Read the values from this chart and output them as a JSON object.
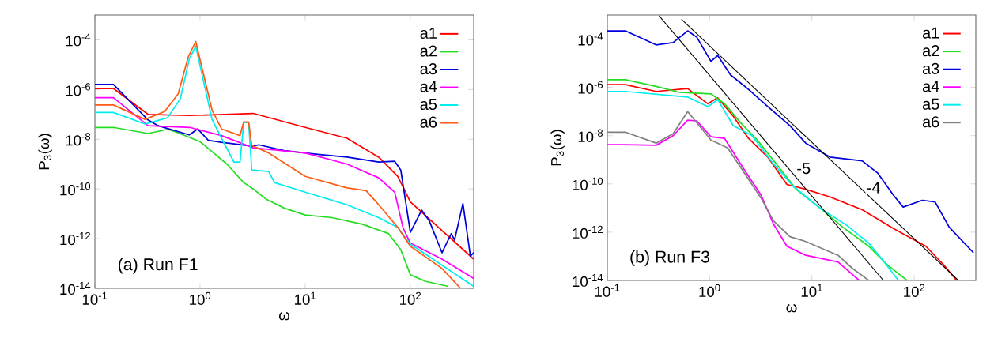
{
  "chart_data": [
    {
      "type": "line",
      "xlabel": "ω",
      "ylabel": "P$_{3}$(ω)",
      "log": "xy",
      "xlim": [
        0.1,
        400
      ],
      "ylim": [
        1e-14,
        0.001
      ],
      "xticks": [
        {
          "value": 0.1,
          "label": "10$^{-1}$"
        },
        {
          "value": 1,
          "label": "10$^{0}$"
        },
        {
          "value": 10,
          "label": "10$^{1}$"
        },
        {
          "value": 100,
          "label": "10$^{2}$"
        }
      ],
      "yticks": [
        {
          "value": 1e-14,
          "label": "10$^{-14}$"
        },
        {
          "value": 1e-12,
          "label": "10$^{-12}$"
        },
        {
          "value": 1e-10,
          "label": "10$^{-10}$"
        },
        {
          "value": 1e-08,
          "label": "10$^{-8}$"
        },
        {
          "value": 1e-06,
          "label": "10$^{-6}$"
        },
        {
          "value": 0.0001,
          "label": "10$^{-4}$"
        }
      ],
      "legend": "top right",
      "marker": "none",
      "line_style": "solid",
      "annotations": [
        "(a) Run F1"
      ],
      "series": [
        {
          "name": "a1",
          "color": "#ff0000",
          "x": [
            0.1,
            0.15,
            0.32,
            0.8,
            3.2,
            10,
            25,
            50,
            76,
            100,
            200,
            400
          ],
          "values": [
            1.1e-06,
            1.1e-06,
            1e-07,
            9e-08,
            1.1e-07,
            3e-08,
            1.1e-08,
            1.9e-09,
            3.2e-10,
            3e-11,
            2.1e-12,
            1.5e-13
          ]
        },
        {
          "name": "a2",
          "color": "#22dd22",
          "x": [
            0.1,
            0.15,
            0.32,
            0.49,
            0.6,
            1.0,
            1.5,
            1.8,
            2.6,
            3.2,
            4.2,
            6.3,
            10,
            18,
            35,
            62,
            81,
            100,
            140,
            230
          ],
          "values": [
            3e-08,
            3e-08,
            1.7e-08,
            2.5e-08,
            1.9e-08,
            8e-09,
            1.9e-09,
            1e-09,
            1.8e-10,
            1e-10,
            4e-11,
            1.7e-11,
            9e-12,
            7e-12,
            3.8e-12,
            1.6e-12,
            3.6e-13,
            3.5e-14,
            1.9e-14,
            1.2e-14
          ]
        },
        {
          "name": "a3",
          "color": "#0000dd",
          "x": [
            0.1,
            0.15,
            0.32,
            0.4,
            0.79,
            0.95,
            1.2,
            1.6,
            3.2,
            3.6,
            6.3,
            12.6,
            25,
            50,
            71,
            81,
            100,
            128,
            152,
            200,
            245,
            263,
            316,
            372,
            400
          ],
          "values": [
            1.6e-06,
            1.6e-06,
            6e-08,
            3.5e-08,
            1.5e-08,
            2.6e-08,
            9e-09,
            7.5e-09,
            5.2e-09,
            6e-09,
            3.5e-09,
            2.5e-09,
            1.9e-09,
            1.2e-09,
            1.3e-09,
            5.8e-10,
            1.8e-12,
            1.4e-11,
            5e-12,
            2.7e-13,
            1.6e-12,
            8.7e-13,
            2.6e-11,
            2e-13,
            2.7e-13
          ]
        },
        {
          "name": "a4",
          "color": "#ff00ff",
          "x": [
            0.1,
            0.15,
            0.32,
            0.8,
            1.6,
            3.2,
            10,
            25,
            50,
            71,
            85,
            100,
            200,
            400
          ],
          "values": [
            4.7e-07,
            4.7e-07,
            3.5e-08,
            3e-08,
            1.4e-08,
            4.5e-09,
            2.8e-09,
            1e-09,
            2.8e-10,
            7.4e-11,
            2.8e-12,
            6.6e-13,
            1.5e-13,
            2.5e-14
          ]
        },
        {
          "name": "a5",
          "color": "#00eeee",
          "x": [
            0.1,
            0.15,
            0.3,
            0.49,
            0.65,
            0.79,
            0.91,
            1.3,
            1.6,
            2.1,
            2.4,
            2.6,
            2.9,
            3.1,
            4.5,
            5.1,
            10,
            25,
            50,
            76,
            100,
            200,
            400
          ],
          "values": [
            1.2e-07,
            1.2e-07,
            4.1e-08,
            7.3e-08,
            4.3e-07,
            1.7e-05,
            5.5e-05,
            6.3e-08,
            1.1e-08,
            1.2e-09,
            1.2e-09,
            4.7e-08,
            4.7e-08,
            5.8e-10,
            5e-10,
            1.8e-10,
            7.4e-11,
            2.3e-11,
            7e-12,
            2.8e-12,
            6e-13,
            8.5e-14,
            1.2e-14
          ]
        },
        {
          "name": "a6",
          "color": "#ff5a14",
          "x": [
            0.1,
            0.15,
            0.3,
            0.46,
            0.62,
            0.77,
            0.91,
            1.3,
            1.6,
            2.4,
            2.6,
            2.9,
            3.1,
            4.5,
            10,
            25,
            38,
            50,
            76,
            100,
            200,
            300
          ],
          "values": [
            2.4e-07,
            2.4e-07,
            6.3e-08,
            1.3e-07,
            6.7e-07,
            2e-05,
            8.6e-05,
            1.5e-07,
            2.6e-08,
            1.4e-08,
            5e-08,
            5e-08,
            5.6e-09,
            2.8e-09,
            3.2e-10,
            1.1e-10,
            8.5e-11,
            2.3e-11,
            2.8e-12,
            4.9e-13,
            6.3e-14,
            1e-14
          ]
        }
      ]
    },
    {
      "type": "line",
      "xlabel": "ω",
      "ylabel": "P$_{3}$(ω)",
      "log": "xy",
      "xlim": [
        0.1,
        400
      ],
      "ylim": [
        1e-14,
        0.001
      ],
      "xticks": [
        {
          "value": 0.1,
          "label": "10$^{-1}$"
        },
        {
          "value": 1,
          "label": "10$^{0}$"
        },
        {
          "value": 10,
          "label": "10$^{1}$"
        },
        {
          "value": 100,
          "label": "10$^{2}$"
        }
      ],
      "yticks": [
        {
          "value": 1e-14,
          "label": "10$^{-14}$"
        },
        {
          "value": 1e-12,
          "label": "10$^{-12}$"
        },
        {
          "value": 1e-10,
          "label": "10$^{-10}$"
        },
        {
          "value": 1e-08,
          "label": "10$^{-8}$"
        },
        {
          "value": 1e-06,
          "label": "10$^{-6}$"
        },
        {
          "value": 0.0001,
          "label": "10$^{-4}$"
        }
      ],
      "legend": "top right",
      "marker": "none",
      "line_style": "solid",
      "annotations": [
        "(b) Run F3",
        {
          "text": "-5",
          "x": 8.3,
          "y": 4.4e-10
        },
        {
          "text": "-4",
          "x": 40,
          "y": 7e-11
        }
      ],
      "series": [
        {
          "name": "a1",
          "color": "#ff0000",
          "x": [
            0.1,
            0.15,
            0.3,
            0.61,
            0.96,
            1.2,
            1.7,
            2.4,
            3.7,
            5.7,
            8.7,
            15,
            31,
            63,
            130,
            195,
            260
          ],
          "values": [
            1.3e-06,
            1.3e-06,
            6.8e-07,
            8.9e-07,
            2.1e-07,
            3.7e-07,
            6.5e-08,
            7.7e-09,
            1.3e-09,
            9.5e-11,
            6e-11,
            2.9e-11,
            8.5e-12,
            1.4e-12,
            2.6e-13,
            4.3e-14,
            1e-14
          ]
        },
        {
          "name": "a2",
          "color": "#22dd22",
          "x": [
            0.1,
            0.15,
            0.3,
            0.51,
            1.03,
            1.4,
            2.0,
            3.0,
            4.9,
            7.0,
            12,
            20,
            36,
            55,
            85
          ],
          "values": [
            2.1e-06,
            2.1e-06,
            1.1e-06,
            6.2e-07,
            5.4e-07,
            2.1e-07,
            3.5e-08,
            5.8e-09,
            4.2e-10,
            6e-11,
            1e-11,
            1.6e-12,
            2.6e-13,
            4.3e-14,
            1e-14
          ]
        },
        {
          "name": "a3",
          "color": "#0000dd",
          "x": [
            0.1,
            0.15,
            0.3,
            0.44,
            0.61,
            0.75,
            1.03,
            1.2,
            1.6,
            2.4,
            3.7,
            6.1,
            8.7,
            15,
            31,
            44,
            63,
            78,
            120,
            160,
            220,
            380
          ],
          "values": [
            0.00022,
            0.00022,
            5.8e-05,
            7.2e-05,
            0.00022,
            0.00012,
            1.2e-05,
            2.1e-05,
            3.3e-06,
            8.3e-07,
            1.6e-07,
            2.6e-08,
            4.9e-09,
            1.3e-09,
            9e-10,
            2.8e-10,
            3.3e-11,
            1.1e-11,
            2.1e-11,
            1.8e-11,
            1.6e-12,
            1.4e-13
          ]
        },
        {
          "name": "a4",
          "color": "#ff00ff",
          "x": [
            0.1,
            0.15,
            0.3,
            0.44,
            0.61,
            0.75,
            1.03,
            1.4,
            2.1,
            3.2,
            4.2,
            5.7,
            8.7,
            18,
            29
          ],
          "values": [
            4.2e-09,
            4.2e-09,
            4e-09,
            1e-08,
            4.4e-08,
            4.1e-08,
            9e-09,
            7.7e-09,
            5e-10,
            3.3e-11,
            2.2e-12,
            2.6e-13,
            1.1e-13,
            5.8e-14,
            1e-14
          ]
        },
        {
          "name": "a5",
          "color": "#00eeee",
          "x": [
            0.1,
            0.15,
            0.61,
            0.96,
            1.2,
            1.7,
            2.6,
            4.2,
            6.5,
            12,
            22,
            36,
            51,
            70
          ],
          "values": [
            6.8e-07,
            6.8e-07,
            4e-07,
            1.6e-07,
            3.1e-07,
            2.6e-08,
            1e-08,
            6.9e-10,
            8.3e-11,
            1e-11,
            1.9e-12,
            3.5e-13,
            5.8e-14,
            1e-14
          ]
        },
        {
          "name": "a6",
          "color": "#808080",
          "x": [
            0.1,
            0.15,
            0.3,
            0.44,
            0.61,
            1.03,
            1.5,
            2.1,
            3.2,
            4.2,
            6.1,
            8.7,
            18,
            25,
            36
          ],
          "values": [
            1.4e-08,
            1.4e-08,
            4.9e-09,
            1.2e-08,
            1e-07,
            6.6e-09,
            3.1e-09,
            3.7e-10,
            2.5e-11,
            3e-12,
            6.5e-13,
            4.1e-13,
            1.1e-13,
            3.1e-14,
            1e-14
          ]
        },
        {
          "type": "line",
          "color": "#000000",
          "x": [
            0.32,
            50
          ],
          "values": [
            0.00093,
            1e-14
          ]
        },
        {
          "type": "line",
          "color": "#000000",
          "x": [
            0.53,
            270
          ],
          "values": [
            0.00067,
            1e-14
          ]
        }
      ]
    }
  ]
}
